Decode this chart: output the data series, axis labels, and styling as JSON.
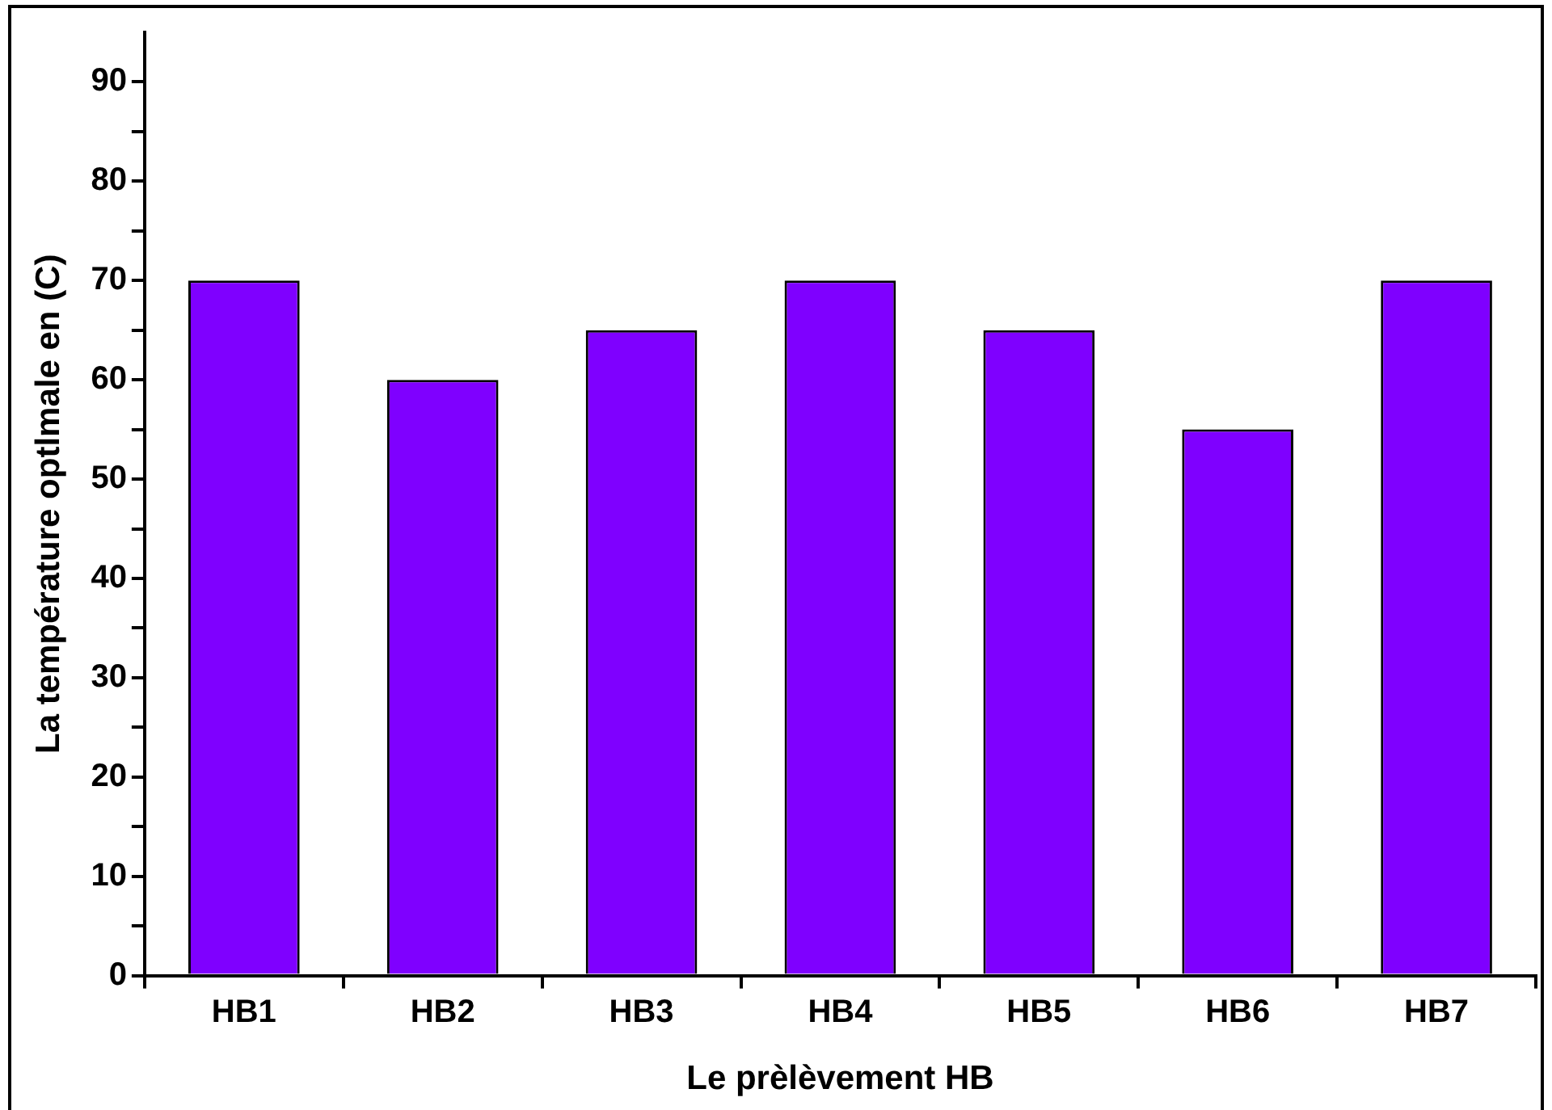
{
  "chart_data": {
    "type": "bar",
    "xlabel": "Le prèlèvement HB",
    "ylabel": "La température optlmale en (C)",
    "categories": [
      "HB1",
      "HB2",
      "HB3",
      "HB4",
      "HB5",
      "HB6",
      "HB7"
    ],
    "values": [
      70,
      60,
      65,
      70,
      65,
      55,
      70
    ],
    "color": "#7f00ff",
    "ylim": [
      0,
      95
    ],
    "yticks": [
      0,
      {
        "value": 5,
        "label": null
      },
      10,
      {
        "value": 15,
        "label": null
      },
      20,
      {
        "value": 25,
        "label": null
      },
      30,
      {
        "value": 35,
        "label": null
      },
      40,
      {
        "value": 45,
        "label": null
      },
      50,
      {
        "value": 55,
        "label": null
      },
      60,
      {
        "value": 65,
        "label": null
      },
      70,
      {
        "value": 75,
        "label": null
      },
      80,
      {
        "value": 85,
        "label": null
      },
      90
    ],
    "grid": false,
    "legend": false
  }
}
